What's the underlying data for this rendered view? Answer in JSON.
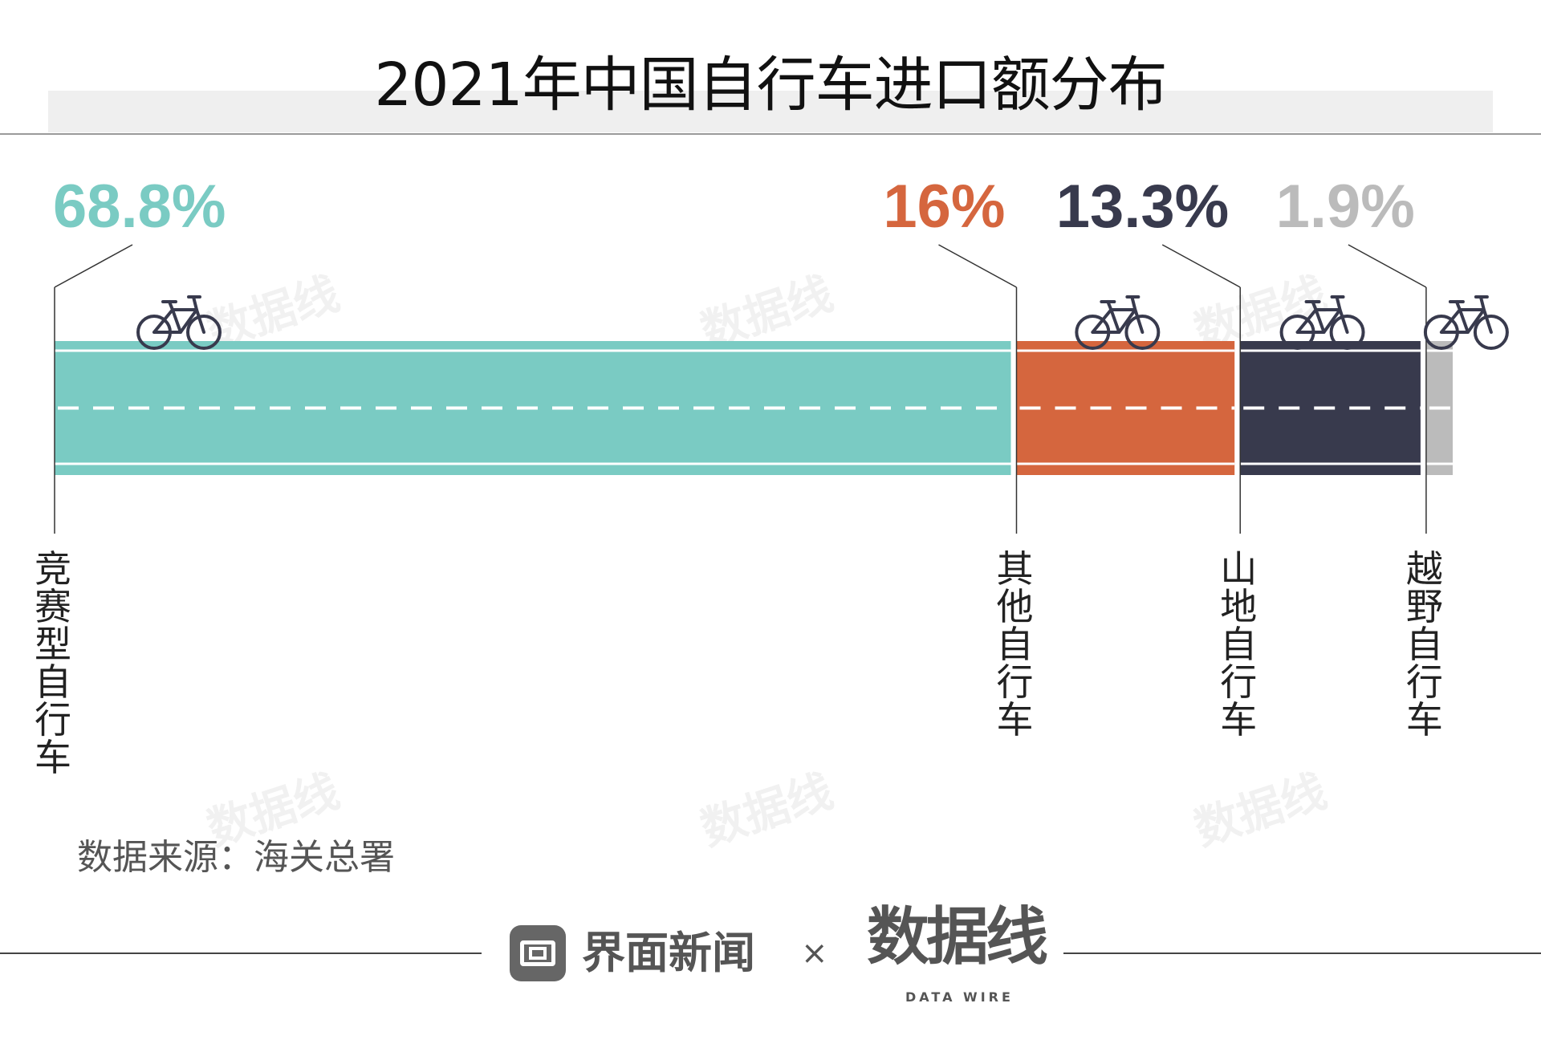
{
  "title": "2021年中国自行车进口额分布",
  "source": "数据来源：海关总署",
  "footer": {
    "brand": "界面新闻",
    "times": "×",
    "partner": "数据线",
    "partner_sub": "DATA WIRE"
  },
  "watermark": "数据线",
  "chart_data": {
    "type": "bar",
    "orientation": "horizontal-stacked",
    "title": "2021年中国自行车进口额分布",
    "unit": "%",
    "categories": [
      "竞赛型自行车",
      "其他自行车",
      "山地自行车",
      "越野自行车"
    ],
    "values": [
      68.8,
      16,
      13.3,
      1.9
    ],
    "labels": [
      "68.8%",
      "16%",
      "13.3%",
      "1.9%"
    ],
    "colors": [
      "#7acbc3",
      "#d5663e",
      "#383a4d",
      "#bbbbbb"
    ],
    "icons": [
      "bicycle-icon",
      "bicycle-icon",
      "bicycle-icon",
      "bicycle-icon"
    ]
  }
}
